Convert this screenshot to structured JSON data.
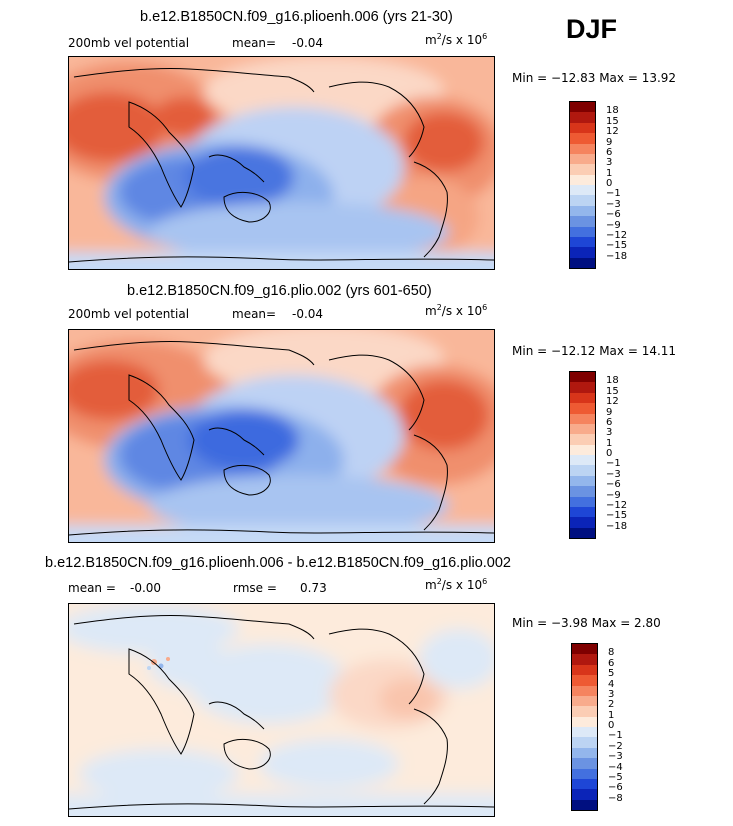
{
  "season": "DJF",
  "units_prefix": "m",
  "units_mid": "/s x 10",
  "panels": [
    {
      "title": "b.e12.B1850CN.f09_g16.plioenh.006 (yrs 21-30)",
      "left_label": "200mb vel potential",
      "mean_label": "mean=",
      "mean_value": "-0.04",
      "minmax": "Min = −12.83 Max =  13.92",
      "colorbar": {
        "ticks": [
          "18",
          "15",
          "12",
          "9",
          "6",
          "3",
          "1",
          "0",
          "−1",
          "−3",
          "−6",
          "−9",
          "−12",
          "−15",
          "−18"
        ],
        "colors": [
          "#7f0000",
          "#b0180f",
          "#d8351a",
          "#ee5a33",
          "#f5845f",
          "#f8ab8c",
          "#fbcdb4",
          "#fdebdc",
          "#dde9f7",
          "#bcd4f3",
          "#93b6ec",
          "#6b93e2",
          "#4370df",
          "#1e46d6",
          "#0b24b8",
          "#000f80"
        ]
      }
    },
    {
      "title": "b.e12.B1850CN.f09_g16.plio.002 (yrs 601-650)",
      "left_label": "200mb vel potential",
      "mean_label": "mean=",
      "mean_value": "-0.04",
      "minmax": "Min = −12.12 Max =  14.11",
      "colorbar": {
        "ticks": [
          "18",
          "15",
          "12",
          "9",
          "6",
          "3",
          "1",
          "0",
          "−1",
          "−3",
          "−6",
          "−9",
          "−12",
          "−15",
          "−18"
        ],
        "colors": [
          "#7f0000",
          "#b0180f",
          "#d8351a",
          "#ee5a33",
          "#f5845f",
          "#f8ab8c",
          "#fbcdb4",
          "#fdebdc",
          "#dde9f7",
          "#bcd4f3",
          "#93b6ec",
          "#6b93e2",
          "#4370df",
          "#1e46d6",
          "#0b24b8",
          "#000f80"
        ]
      }
    },
    {
      "title": "b.e12.B1850CN.f09_g16.plioenh.006 - b.e12.B1850CN.f09_g16.plio.002",
      "mean_label": "mean =",
      "mean_value": "-0.00",
      "rmse_label": "rmse =",
      "rmse_value": "0.73",
      "minmax": "Min =  −3.98 Max =   2.80",
      "colorbar": {
        "ticks": [
          "8",
          "6",
          "5",
          "4",
          "3",
          "2",
          "1",
          "0",
          "−1",
          "−2",
          "−3",
          "−4",
          "−5",
          "−6",
          "−8"
        ],
        "colors": [
          "#7f0000",
          "#b0180f",
          "#d8351a",
          "#ee5a33",
          "#f5845f",
          "#f8ab8c",
          "#fbcdb4",
          "#fdebdc",
          "#dde9f7",
          "#bcd4f3",
          "#93b6ec",
          "#6b93e2",
          "#4370df",
          "#1e46d6",
          "#0b24b8",
          "#000f80"
        ]
      }
    }
  ]
}
